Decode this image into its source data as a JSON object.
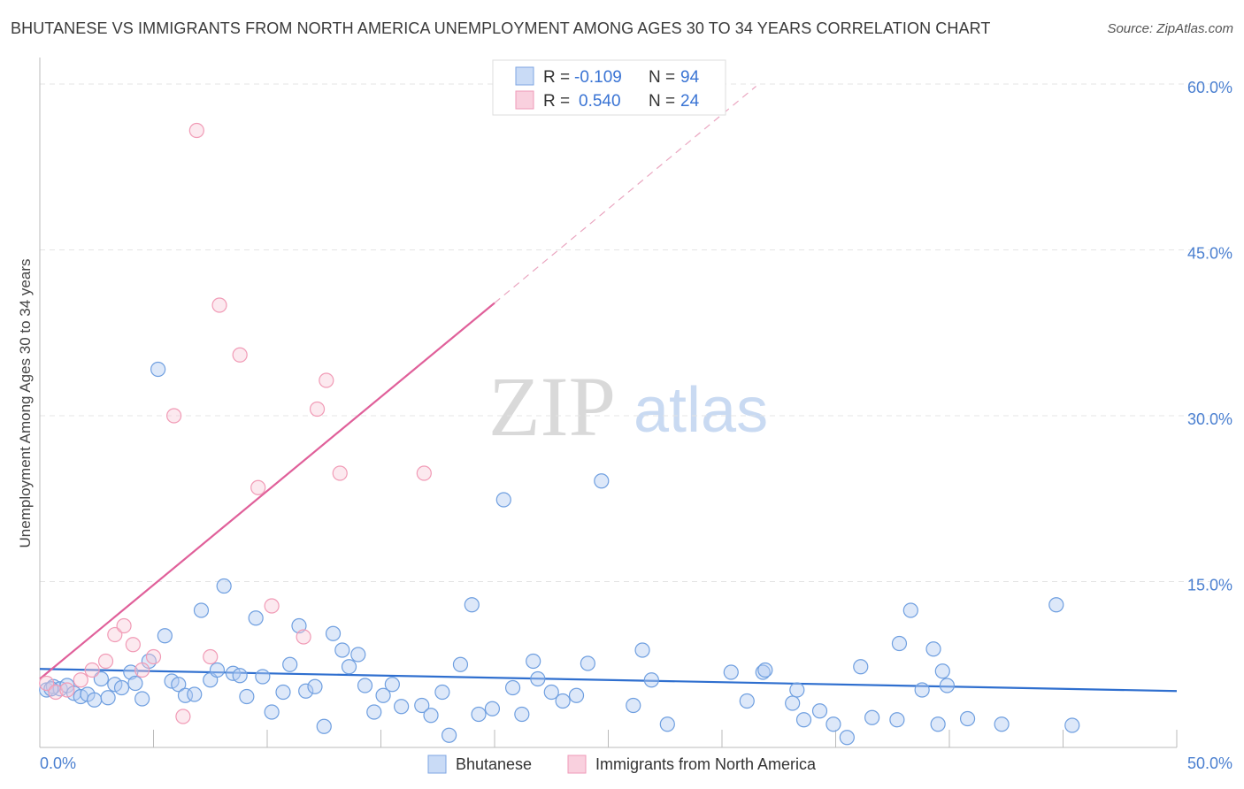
{
  "header": {
    "title": "BHUTANESE VS IMMIGRANTS FROM NORTH AMERICA UNEMPLOYMENT AMONG AGES 30 TO 34 YEARS CORRELATION CHART",
    "source": "Source: ZipAtlas.com"
  },
  "watermark": {
    "zip": "ZIP",
    "atlas": "atlas"
  },
  "legend_top": {
    "rows": [
      {
        "r_label": "R =",
        "r_value": "-0.109",
        "n_label": "N =",
        "n_value": "94"
      },
      {
        "r_label": "R =",
        "r_value": "0.540",
        "n_label": "N =",
        "n_value": "24"
      }
    ]
  },
  "legend_bottom": {
    "items": [
      {
        "label": "Bhutanese"
      },
      {
        "label": "Immigrants from North America"
      }
    ]
  },
  "chart_data": {
    "type": "scatter",
    "title": "BHUTANESE VS IMMIGRANTS FROM NORTH AMERICA UNEMPLOYMENT AMONG AGES 30 TO 34 YEARS CORRELATION CHART",
    "ylabel": "Unemployment Among Ages 30 to 34 years",
    "xlabel": "",
    "xlim": [
      0,
      50
    ],
    "ylim": [
      0,
      62
    ],
    "x_tick_labels": [
      "0.0%",
      "50.0%"
    ],
    "y_tick_labels": [
      "15.0%",
      "30.0%",
      "45.0%",
      "60.0%"
    ],
    "y_ticks": [
      15,
      30,
      45,
      60
    ],
    "grid": true,
    "colors": {
      "bhutanese": "#6f9fe0",
      "bhutanese_line": "#2f6fcf",
      "immigrants": "#f19bb6",
      "immigrants_line": "#e0609a"
    },
    "series": [
      {
        "name": "Bhutanese",
        "trend": {
          "x": [
            0,
            50
          ],
          "y": [
            7.1,
            5.1
          ]
        },
        "points": [
          [
            0.3,
            5.2
          ],
          [
            0.6,
            5.5
          ],
          [
            0.9,
            5.3
          ],
          [
            1.2,
            5.6
          ],
          [
            1.5,
            4.9
          ],
          [
            1.8,
            4.6
          ],
          [
            2.1,
            4.8
          ],
          [
            2.4,
            4.3
          ],
          [
            2.7,
            6.2
          ],
          [
            3.0,
            4.5
          ],
          [
            3.3,
            5.7
          ],
          [
            3.6,
            5.4
          ],
          [
            4.0,
            6.8
          ],
          [
            4.2,
            5.8
          ],
          [
            4.5,
            4.4
          ],
          [
            4.8,
            7.8
          ],
          [
            5.2,
            34.2
          ],
          [
            5.5,
            10.1
          ],
          [
            5.8,
            6.0
          ],
          [
            6.1,
            5.7
          ],
          [
            6.4,
            4.7
          ],
          [
            6.8,
            4.8
          ],
          [
            7.1,
            12.4
          ],
          [
            7.5,
            6.1
          ],
          [
            7.8,
            7.0
          ],
          [
            8.1,
            14.6
          ],
          [
            8.5,
            6.7
          ],
          [
            8.8,
            6.5
          ],
          [
            9.1,
            4.6
          ],
          [
            9.5,
            11.7
          ],
          [
            9.8,
            6.4
          ],
          [
            10.2,
            3.2
          ],
          [
            10.7,
            5.0
          ],
          [
            11.0,
            7.5
          ],
          [
            11.4,
            11.0
          ],
          [
            11.7,
            5.1
          ],
          [
            12.1,
            5.5
          ],
          [
            12.5,
            1.9
          ],
          [
            12.9,
            10.3
          ],
          [
            13.3,
            8.8
          ],
          [
            13.6,
            7.3
          ],
          [
            14.0,
            8.4
          ],
          [
            14.3,
            5.6
          ],
          [
            14.7,
            3.2
          ],
          [
            15.1,
            4.7
          ],
          [
            15.5,
            5.7
          ],
          [
            15.9,
            3.7
          ],
          [
            16.8,
            3.8
          ],
          [
            17.2,
            2.9
          ],
          [
            17.7,
            5.0
          ],
          [
            18.0,
            1.1
          ],
          [
            18.5,
            7.5
          ],
          [
            19.0,
            12.9
          ],
          [
            19.3,
            3.0
          ],
          [
            19.9,
            3.5
          ],
          [
            20.4,
            22.4
          ],
          [
            20.8,
            5.4
          ],
          [
            21.2,
            3.0
          ],
          [
            21.7,
            7.8
          ],
          [
            21.9,
            6.2
          ],
          [
            22.5,
            5.0
          ],
          [
            23.0,
            4.2
          ],
          [
            23.6,
            4.7
          ],
          [
            24.1,
            7.6
          ],
          [
            24.7,
            24.1
          ],
          [
            26.1,
            3.8
          ],
          [
            26.5,
            8.8
          ],
          [
            26.9,
            6.1
          ],
          [
            27.6,
            2.1
          ],
          [
            30.4,
            6.8
          ],
          [
            31.1,
            4.2
          ],
          [
            31.8,
            6.8
          ],
          [
            31.9,
            7.0
          ],
          [
            33.1,
            4.0
          ],
          [
            33.3,
            5.2
          ],
          [
            33.6,
            2.5
          ],
          [
            34.3,
            3.3
          ],
          [
            34.9,
            2.1
          ],
          [
            35.5,
            0.9
          ],
          [
            36.1,
            7.3
          ],
          [
            36.6,
            2.7
          ],
          [
            37.7,
            2.5
          ],
          [
            37.8,
            9.4
          ],
          [
            38.3,
            12.4
          ],
          [
            38.8,
            5.2
          ],
          [
            39.3,
            8.9
          ],
          [
            39.5,
            2.1
          ],
          [
            39.7,
            6.9
          ],
          [
            39.9,
            5.6
          ],
          [
            40.8,
            2.6
          ],
          [
            42.3,
            2.1
          ],
          [
            44.7,
            12.9
          ],
          [
            45.4,
            2.0
          ],
          [
            0.5,
            5.3
          ]
        ]
      },
      {
        "name": "Immigrants from North America",
        "trend": {
          "x": [
            0,
            20
          ],
          "y": [
            6.2,
            40.2
          ]
        },
        "trend_dashed": {
          "x": [
            20,
            31.5
          ],
          "y": [
            40.2,
            59.8
          ]
        },
        "points": [
          [
            0.3,
            5.8
          ],
          [
            0.7,
            5.0
          ],
          [
            1.2,
            5.2
          ],
          [
            1.8,
            6.1
          ],
          [
            2.3,
            7.0
          ],
          [
            2.9,
            7.8
          ],
          [
            3.3,
            10.2
          ],
          [
            3.7,
            11.0
          ],
          [
            4.1,
            9.3
          ],
          [
            4.5,
            7.0
          ],
          [
            5.0,
            8.2
          ],
          [
            5.9,
            30.0
          ],
          [
            6.3,
            2.8
          ],
          [
            6.9,
            55.8
          ],
          [
            7.5,
            8.2
          ],
          [
            7.9,
            40.0
          ],
          [
            8.8,
            35.5
          ],
          [
            9.6,
            23.5
          ],
          [
            10.2,
            12.8
          ],
          [
            11.6,
            10.0
          ],
          [
            12.2,
            30.6
          ],
          [
            12.6,
            33.2
          ],
          [
            13.2,
            24.8
          ],
          [
            16.9,
            24.8
          ]
        ]
      }
    ]
  }
}
